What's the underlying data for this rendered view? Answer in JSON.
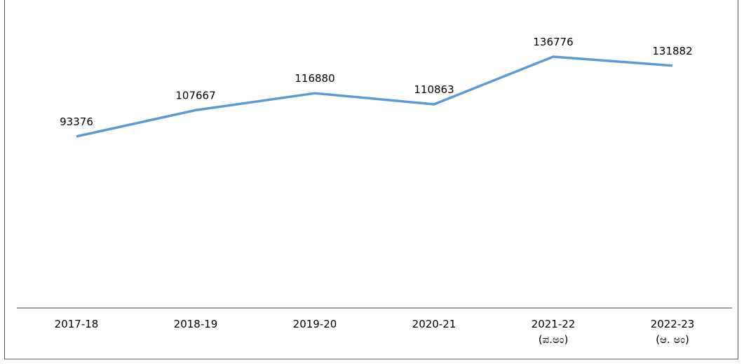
{
  "chart_data": {
    "type": "line",
    "categories": [
      "2017-18",
      "2018-19",
      "2019-20",
      "2020-21",
      "2021-22\n(ಪ.ಅಂ)",
      "2022-23\n(ಆ. ಅಂ)"
    ],
    "series": [
      {
        "color": "#5b9bd5",
        "values": [
          93376,
          107667,
          116880,
          110863,
          136776,
          131882
        ]
      }
    ],
    "ylim": [
      0,
      160000
    ]
  }
}
